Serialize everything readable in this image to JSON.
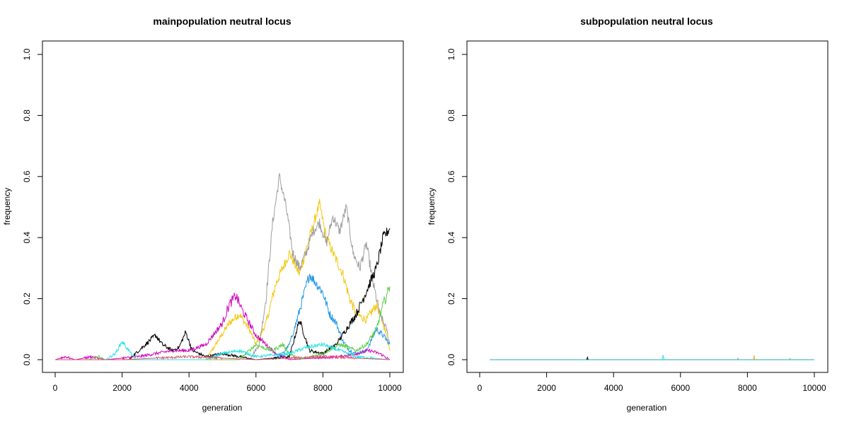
{
  "chart_data": [
    {
      "type": "line",
      "title": "mainpopulation neutral locus",
      "xlabel": "generation",
      "ylabel": "frequency",
      "xlim": [
        0,
        10000
      ],
      "ylim": [
        0,
        1
      ],
      "xticks": [
        0,
        2000,
        4000,
        6000,
        8000,
        10000
      ],
      "yticks": [
        0.0,
        0.2,
        0.4,
        0.6,
        0.8,
        1.0
      ],
      "ytick_labels": [
        "0.0",
        "0.2",
        "0.4",
        "0.6",
        "0.8",
        "1.0"
      ],
      "series": [
        {
          "name": "orange",
          "color": "#F5C710",
          "points": [
            [
              4500,
              0
            ],
            [
              4800,
              0.05
            ],
            [
              5200,
              0.12
            ],
            [
              5500,
              0.15
            ],
            [
              5800,
              0.1
            ],
            [
              6000,
              0.05
            ],
            [
              6300,
              0.12
            ],
            [
              6600,
              0.25
            ],
            [
              7000,
              0.35
            ],
            [
              7300,
              0.28
            ],
            [
              7600,
              0.4
            ],
            [
              7900,
              0.51
            ],
            [
              8100,
              0.4
            ],
            [
              8300,
              0.35
            ],
            [
              8600,
              0.28
            ],
            [
              8800,
              0.2
            ],
            [
              9000,
              0.15
            ],
            [
              9300,
              0.13
            ],
            [
              9600,
              0.18
            ],
            [
              9800,
              0.12
            ],
            [
              10000,
              0.03
            ]
          ]
        },
        {
          "name": "gray",
          "color": "#9E9E9E",
          "points": [
            [
              5800,
              0
            ],
            [
              6100,
              0.05
            ],
            [
              6300,
              0.2
            ],
            [
              6500,
              0.45
            ],
            [
              6700,
              0.6
            ],
            [
              6900,
              0.5
            ],
            [
              7100,
              0.35
            ],
            [
              7300,
              0.3
            ],
            [
              7500,
              0.35
            ],
            [
              7700,
              0.42
            ],
            [
              7900,
              0.45
            ],
            [
              8100,
              0.38
            ],
            [
              8300,
              0.47
            ],
            [
              8500,
              0.42
            ],
            [
              8700,
              0.5
            ],
            [
              8900,
              0.35
            ],
            [
              9100,
              0.3
            ],
            [
              9300,
              0.38
            ],
            [
              9500,
              0.25
            ],
            [
              9700,
              0.15
            ],
            [
              9900,
              0.1
            ],
            [
              10000,
              0.05
            ]
          ]
        },
        {
          "name": "blue",
          "color": "#2297E6",
          "points": [
            [
              6500,
              0
            ],
            [
              6800,
              0.02
            ],
            [
              7000,
              0.05
            ],
            [
              7200,
              0.12
            ],
            [
              7400,
              0.2
            ],
            [
              7600,
              0.28
            ],
            [
              7800,
              0.25
            ],
            [
              8000,
              0.22
            ],
            [
              8200,
              0.15
            ],
            [
              8400,
              0.12
            ],
            [
              8600,
              0.06
            ],
            [
              8800,
              0.03
            ],
            [
              9000,
              0.02
            ],
            [
              9300,
              0.03
            ],
            [
              9600,
              0.1
            ],
            [
              9800,
              0.08
            ],
            [
              10000,
              0.05
            ]
          ]
        },
        {
          "name": "black",
          "color": "#000000",
          "points": [
            [
              2200,
              0
            ],
            [
              2500,
              0.03
            ],
            [
              2800,
              0.06
            ],
            [
              3000,
              0.08
            ],
            [
              3200,
              0.05
            ],
            [
              3500,
              0.03
            ],
            [
              3700,
              0.04
            ],
            [
              3900,
              0.09
            ],
            [
              4100,
              0.03
            ],
            [
              4500,
              0.01
            ],
            [
              5000,
              0.02
            ],
            [
              5500,
              0.01
            ],
            [
              6000,
              0
            ],
            [
              7000,
              0.01
            ],
            [
              7300,
              0.13
            ],
            [
              7600,
              0.03
            ],
            [
              8000,
              0.02
            ],
            [
              8400,
              0.05
            ],
            [
              8700,
              0.1
            ],
            [
              9000,
              0.15
            ],
            [
              9200,
              0.2
            ],
            [
              9400,
              0.25
            ],
            [
              9600,
              0.3
            ],
            [
              9800,
              0.4
            ],
            [
              10000,
              0.43
            ]
          ]
        },
        {
          "name": "magenta",
          "color": "#CD0BBC",
          "points": [
            [
              0,
              0
            ],
            [
              300,
              0.01
            ],
            [
              600,
              0
            ],
            [
              1100,
              0.01
            ],
            [
              1500,
              0
            ],
            [
              2500,
              0.01
            ],
            [
              3000,
              0.02
            ],
            [
              3500,
              0.03
            ],
            [
              4000,
              0.03
            ],
            [
              4500,
              0.05
            ],
            [
              5000,
              0.12
            ],
            [
              5200,
              0.18
            ],
            [
              5400,
              0.21
            ],
            [
              5600,
              0.16
            ],
            [
              5800,
              0.12
            ],
            [
              6000,
              0.08
            ],
            [
              6300,
              0.05
            ],
            [
              6600,
              0.02
            ],
            [
              7000,
              0
            ],
            [
              8500,
              0.01
            ],
            [
              9000,
              0.02
            ],
            [
              9400,
              0.03
            ],
            [
              9700,
              0.02
            ],
            [
              10000,
              0
            ]
          ]
        },
        {
          "name": "green",
          "color": "#61D04F",
          "points": [
            [
              1000,
              0
            ],
            [
              1300,
              0.01
            ],
            [
              1500,
              0
            ],
            [
              5500,
              0
            ],
            [
              5800,
              0.03
            ],
            [
              6000,
              0.05
            ],
            [
              6200,
              0.04
            ],
            [
              6500,
              0.03
            ],
            [
              6800,
              0.05
            ],
            [
              7000,
              0.02
            ],
            [
              7300,
              0
            ],
            [
              8000,
              0.02
            ],
            [
              8500,
              0.05
            ],
            [
              9000,
              0.03
            ],
            [
              9300,
              0.05
            ],
            [
              9600,
              0.1
            ],
            [
              9800,
              0.18
            ],
            [
              10000,
              0.24
            ]
          ]
        },
        {
          "name": "cyan",
          "color": "#28E2E5",
          "points": [
            [
              1500,
              0
            ],
            [
              1800,
              0.02
            ],
            [
              2000,
              0.06
            ],
            [
              2200,
              0.03
            ],
            [
              2400,
              0
            ],
            [
              4500,
              0
            ],
            [
              5000,
              0.02
            ],
            [
              5500,
              0.03
            ],
            [
              6000,
              0.01
            ],
            [
              7000,
              0.02
            ],
            [
              7500,
              0.04
            ],
            [
              8000,
              0.05
            ],
            [
              8500,
              0.03
            ],
            [
              9000,
              0.01
            ],
            [
              10000,
              0
            ]
          ]
        },
        {
          "name": "red",
          "color": "#DF536B",
          "points": [
            [
              0,
              0
            ],
            [
              2000,
              0
            ],
            [
              4000,
              0.01
            ],
            [
              6000,
              0
            ],
            [
              8000,
              0.01
            ],
            [
              10000,
              0
            ]
          ]
        }
      ]
    },
    {
      "type": "line",
      "title": "subpopulation neutral locus",
      "xlabel": "generation",
      "ylabel": "frequency",
      "xlim": [
        0,
        10000
      ],
      "ylim": [
        0,
        1
      ],
      "xticks": [
        0,
        2000,
        4000,
        6000,
        8000,
        10000
      ],
      "yticks": [
        0.0,
        0.2,
        0.4,
        0.6,
        0.8,
        1.0
      ],
      "ytick_labels": [
        "0.0",
        "0.2",
        "0.4",
        "0.6",
        "0.8",
        "1.0"
      ],
      "series": [
        {
          "name": "baseline",
          "color": "#1FA8B5",
          "points": [
            [
              300,
              0
            ],
            [
              10000,
              0
            ]
          ]
        },
        {
          "name": "black-spike",
          "color": "#000000",
          "points": [
            [
              3200,
              0
            ],
            [
              3220,
              0.008
            ],
            [
              3240,
              0
            ]
          ]
        },
        {
          "name": "cyan-spike",
          "color": "#28E2E5",
          "points": [
            [
              5450,
              0
            ],
            [
              5480,
              0.015
            ],
            [
              5510,
              0
            ]
          ]
        },
        {
          "name": "orange-spike",
          "color": "#F5A623",
          "points": [
            [
              8180,
              0
            ],
            [
              8200,
              0.014
            ],
            [
              8220,
              0
            ]
          ]
        },
        {
          "name": "gray-spike",
          "color": "#9E9E9E",
          "points": [
            [
              7700,
              0
            ],
            [
              7720,
              0.005
            ],
            [
              7740,
              0
            ]
          ]
        },
        {
          "name": "green-spike",
          "color": "#61D04F",
          "points": [
            [
              9250,
              0
            ],
            [
              9270,
              0.004
            ],
            [
              9290,
              0
            ]
          ]
        }
      ]
    }
  ]
}
